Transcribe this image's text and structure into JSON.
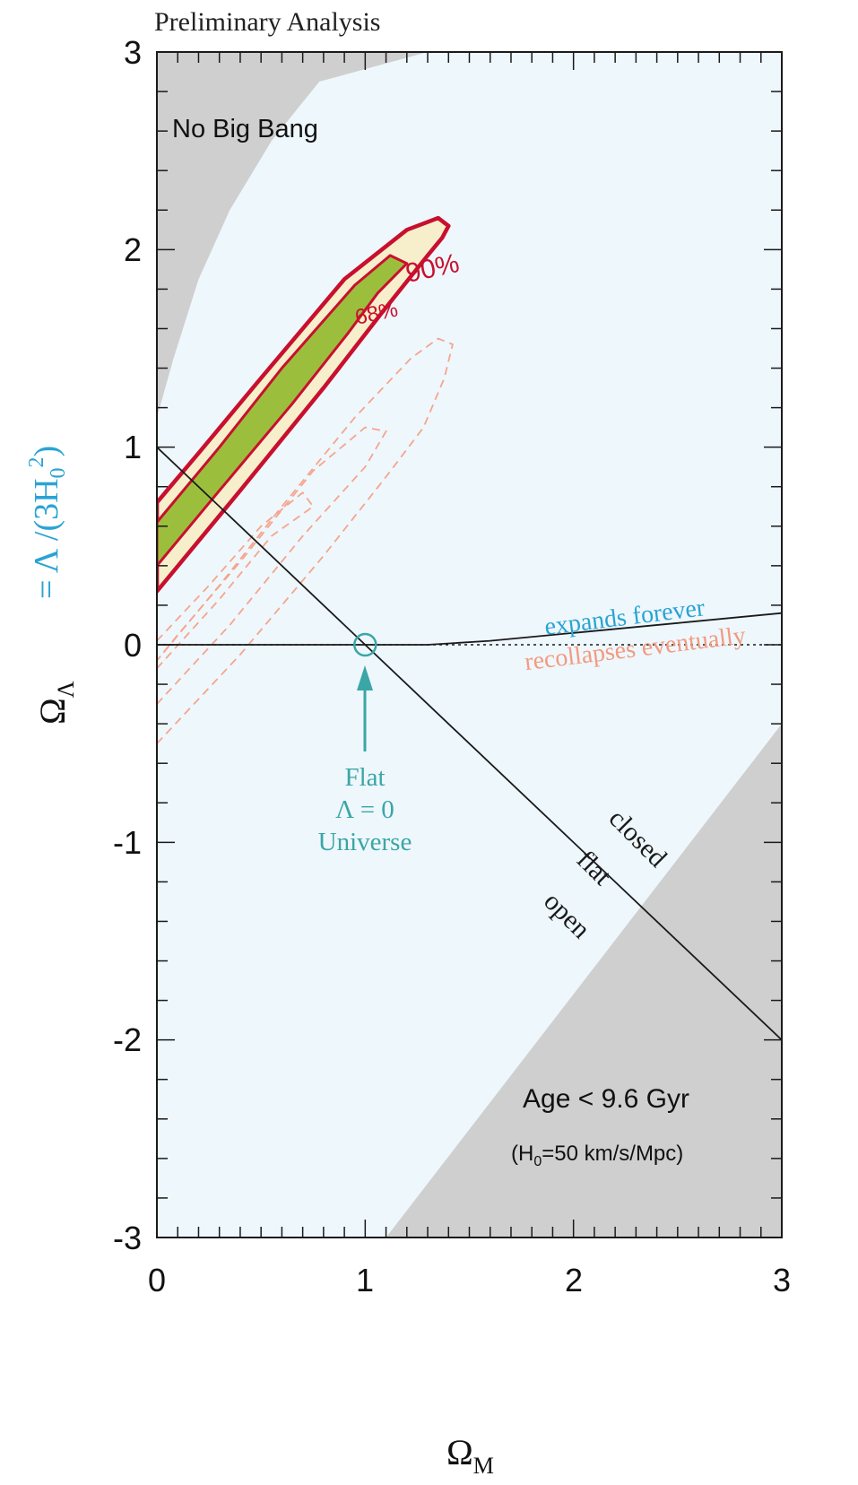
{
  "chart_data": {
    "type": "contour",
    "title": "Preliminary Analysis",
    "xlabel": {
      "main": "Ω",
      "sub": "M"
    },
    "ylabel": {
      "main": "Ω",
      "sub": "Λ",
      "equals": "= Λ /(3H",
      "h_sub": "0",
      "h_sup": "2",
      "close": ")"
    },
    "xlim": [
      0,
      3
    ],
    "ylim": [
      -3,
      3
    ],
    "x_ticks": [
      0,
      1,
      2,
      3
    ],
    "y_ticks": [
      3,
      2,
      1,
      0,
      -1,
      -2,
      -3
    ],
    "x_tick_labels": [
      "0",
      "1",
      "2",
      "3"
    ],
    "y_tick_labels": [
      "3",
      "2",
      "1",
      "0",
      "-1",
      "-2",
      "-3"
    ],
    "grid": false,
    "regions": [
      {
        "name": "no-big-bang",
        "label": "No Big Bang",
        "points": [
          [
            0,
            1.15
          ],
          [
            0.08,
            1.45
          ],
          [
            0.2,
            1.85
          ],
          [
            0.35,
            2.2
          ],
          [
            0.55,
            2.55
          ],
          [
            0.78,
            2.85
          ],
          [
            1.3,
            3
          ],
          [
            0,
            3
          ]
        ]
      },
      {
        "name": "age-limit",
        "label": "Age < 9.6 Gyr",
        "sublabel": {
          "open": "(H",
          "sub": "0",
          "rest": "=50 km/s/Mpc)"
        },
        "points": [
          [
            1.1,
            -3
          ],
          [
            3,
            -0.4
          ],
          [
            3,
            -3
          ]
        ]
      }
    ],
    "confidence_contours": [
      {
        "name": "90%",
        "label": "90%",
        "points": [
          [
            0,
            0.27
          ],
          [
            0.4,
            0.78
          ],
          [
            0.8,
            1.3
          ],
          [
            1.08,
            1.68
          ],
          [
            1.3,
            1.97
          ],
          [
            1.37,
            2.06
          ],
          [
            1.4,
            2.12
          ],
          [
            1.35,
            2.16
          ],
          [
            1.2,
            2.1
          ],
          [
            0.9,
            1.85
          ],
          [
            0.5,
            1.35
          ],
          [
            0.2,
            0.97
          ],
          [
            0,
            0.72
          ]
        ]
      },
      {
        "name": "68%",
        "label": "68%",
        "points": [
          [
            0,
            0.4
          ],
          [
            0.3,
            0.78
          ],
          [
            0.65,
            1.22
          ],
          [
            0.92,
            1.58
          ],
          [
            1.06,
            1.78
          ],
          [
            1.2,
            1.93
          ],
          [
            1.12,
            1.97
          ],
          [
            0.95,
            1.82
          ],
          [
            0.6,
            1.4
          ],
          [
            0.3,
            1.0
          ],
          [
            0,
            0.62
          ]
        ]
      }
    ],
    "dashed_contours": [
      [
        [
          0,
          -0.5
        ],
        [
          0.4,
          -0.05
        ],
        [
          0.8,
          0.45
        ],
        [
          1.1,
          0.85
        ],
        [
          1.28,
          1.1
        ],
        [
          1.38,
          1.35
        ],
        [
          1.42,
          1.52
        ],
        [
          1.35,
          1.55
        ],
        [
          1.22,
          1.45
        ],
        [
          0.95,
          1.15
        ],
        [
          0.6,
          0.7
        ],
        [
          0.3,
          0.3
        ],
        [
          0,
          -0.08
        ]
      ],
      [
        [
          0,
          -0.3
        ],
        [
          0.35,
          0.1
        ],
        [
          0.7,
          0.55
        ],
        [
          1.0,
          0.9
        ],
        [
          1.1,
          1.08
        ],
        [
          1.0,
          1.1
        ],
        [
          0.75,
          0.88
        ],
        [
          0.4,
          0.42
        ],
        [
          0.1,
          0.05
        ],
        [
          0,
          -0.08
        ]
      ],
      [
        [
          0,
          -0.12
        ],
        [
          0.3,
          0.23
        ],
        [
          0.55,
          0.55
        ],
        [
          0.75,
          0.7
        ],
        [
          0.7,
          0.77
        ],
        [
          0.5,
          0.6
        ],
        [
          0.25,
          0.3
        ],
        [
          0,
          0.02
        ]
      ]
    ],
    "lines": [
      {
        "name": "flat-line",
        "points": [
          [
            0,
            1
          ],
          [
            3,
            -2
          ]
        ],
        "style": "solid"
      },
      {
        "name": "expansion-boundary",
        "points": [
          [
            0,
            0
          ],
          [
            1.3,
            0
          ],
          [
            1.6,
            0.02
          ],
          [
            2,
            0.06
          ],
          [
            2.5,
            0.11
          ],
          [
            3,
            0.16
          ]
        ],
        "style": "solid"
      },
      {
        "name": "zero-line",
        "points": [
          [
            0,
            0
          ],
          [
            3,
            0
          ]
        ],
        "style": "dotted"
      }
    ],
    "annotations": [
      {
        "name": "expands-forever",
        "text": "expands forever",
        "x": 2.25,
        "y": 0.1,
        "angle": -7,
        "color": "#2aa3d4"
      },
      {
        "name": "recollapses-eventually",
        "text": "recollapses eventually",
        "x": 2.3,
        "y": -0.06,
        "angle": -7,
        "color": "#f39a80"
      },
      {
        "name": "closed",
        "text": "closed",
        "x": 2.28,
        "y": -1.01,
        "angle": 45,
        "color": "#1a1a1a"
      },
      {
        "name": "flat",
        "text": "flat",
        "x": 2.07,
        "y": -1.16,
        "angle": 45,
        "color": "#1a1a1a"
      },
      {
        "name": "open",
        "text": "open",
        "x": 1.94,
        "y": -1.4,
        "angle": 45,
        "color": "#1a1a1a"
      },
      {
        "name": "flat-universe",
        "lines": [
          "Flat",
          "Λ = 0",
          "Universe"
        ],
        "marker": [
          1,
          0
        ],
        "color": "#3aa6a6"
      }
    ]
  }
}
